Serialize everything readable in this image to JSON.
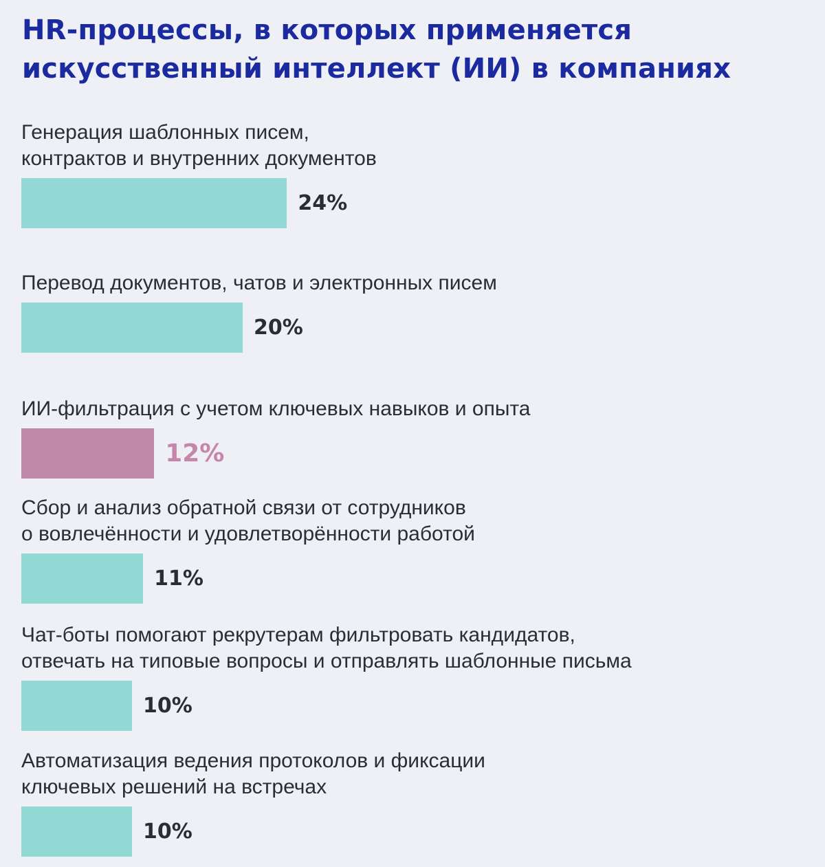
{
  "title": "HR-процессы, в которых применяется\nискусственный интеллект (ИИ) в компаниях",
  "colors": {
    "background": "#eef0f6",
    "title": "#1c2aa0",
    "bar_default": "#92d9d5",
    "bar_highlight": "#c189a9",
    "value_default": "#2b2d33",
    "value_highlight": "#c487ab"
  },
  "chart_data": {
    "type": "bar",
    "orientation": "horizontal",
    "title": "HR-процессы, в которых применяется искусственный интеллект (ИИ) в компаниях",
    "categories": [
      "Генерация шаблонных писем,\nконтрактов и внутренних документов",
      "Перевод документов, чатов и электронных писем",
      "ИИ-фильтрация с учетом ключевых навыков и опыта",
      "Сбор и анализ обратной связи от сотрудников\nо вовлечённости и удовлетворённости работой",
      "Чат-боты помогают рекрутерам фильтровать кандидатов,\nотвечать на типовые вопросы и отправлять шаблонные письма",
      "Автоматизация ведения протоколов и фиксации\nключевых решений на встречах"
    ],
    "values": [
      24,
      20,
      12,
      11,
      10,
      10
    ],
    "value_labels": [
      "24%",
      "20%",
      "12%",
      "11%",
      "10%",
      "10%"
    ],
    "highlighted": [
      false,
      false,
      true,
      false,
      false,
      false
    ],
    "unit": "%",
    "grid": false,
    "legend": "none"
  }
}
